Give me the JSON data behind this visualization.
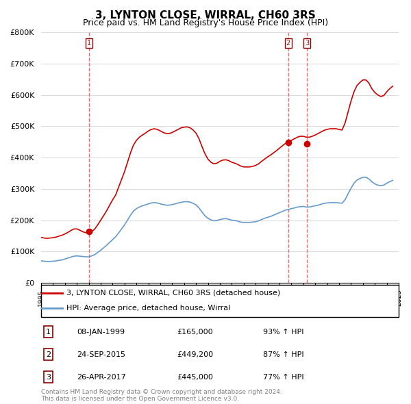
{
  "title": "3, LYNTON CLOSE, WIRRAL, CH60 3RS",
  "subtitle": "Price paid vs. HM Land Registry's House Price Index (HPI)",
  "ylabel": "",
  "ylim": [
    0,
    800000
  ],
  "yticks": [
    0,
    100000,
    200000,
    300000,
    400000,
    500000,
    600000,
    700000,
    800000
  ],
  "ytick_labels": [
    "£0",
    "£100K",
    "£200K",
    "£300K",
    "£400K",
    "£500K",
    "£600K",
    "£700K",
    "£800K"
  ],
  "sales": [
    {
      "label": "1",
      "year": 1999.03,
      "price": 165000,
      "date_str": "08-JAN-1999",
      "price_str": "£165,000",
      "hpi_str": "93% ↑ HPI"
    },
    {
      "label": "2",
      "year": 2015.73,
      "price": 449200,
      "date_str": "24-SEP-2015",
      "price_str": "£449,200",
      "hpi_str": "87% ↑ HPI"
    },
    {
      "label": "3",
      "year": 2017.32,
      "price": 445000,
      "date_str": "26-APR-2017",
      "price_str": "£445,000",
      "hpi_str": "77% ↑ HPI"
    }
  ],
  "red_line_color": "#cc0000",
  "blue_line_color": "#6699cc",
  "sale_marker_color": "#cc0000",
  "vline_color": "#ff6666",
  "grid_color": "#dddddd",
  "background_color": "#ffffff",
  "legend_label_red": "3, LYNTON CLOSE, WIRRAL, CH60 3RS (detached house)",
  "legend_label_blue": "HPI: Average price, detached house, Wirral",
  "footer": "Contains HM Land Registry data © Crown copyright and database right 2024.\nThis data is licensed under the Open Government Licence v3.0.",
  "title_fontsize": 11,
  "subtitle_fontsize": 9,
  "hpi_red_data": {
    "years": [
      1995.0,
      1995.25,
      1995.5,
      1995.75,
      1996.0,
      1996.25,
      1996.5,
      1996.75,
      1997.0,
      1997.25,
      1997.5,
      1997.75,
      1998.0,
      1998.25,
      1998.5,
      1998.75,
      1999.0,
      1999.25,
      1999.5,
      1999.75,
      2000.0,
      2000.25,
      2000.5,
      2000.75,
      2001.0,
      2001.25,
      2001.5,
      2001.75,
      2002.0,
      2002.25,
      2002.5,
      2002.75,
      2003.0,
      2003.25,
      2003.5,
      2003.75,
      2004.0,
      2004.25,
      2004.5,
      2004.75,
      2005.0,
      2005.25,
      2005.5,
      2005.75,
      2006.0,
      2006.25,
      2006.5,
      2006.75,
      2007.0,
      2007.25,
      2007.5,
      2007.75,
      2008.0,
      2008.25,
      2008.5,
      2008.75,
      2009.0,
      2009.25,
      2009.5,
      2009.75,
      2010.0,
      2010.25,
      2010.5,
      2010.75,
      2011.0,
      2011.25,
      2011.5,
      2011.75,
      2012.0,
      2012.25,
      2012.5,
      2012.75,
      2013.0,
      2013.25,
      2013.5,
      2013.75,
      2014.0,
      2014.25,
      2014.5,
      2014.75,
      2015.0,
      2015.25,
      2015.5,
      2015.75,
      2016.0,
      2016.25,
      2016.5,
      2016.75,
      2017.0,
      2017.25,
      2017.5,
      2017.75,
      2018.0,
      2018.25,
      2018.5,
      2018.75,
      2019.0,
      2019.25,
      2019.5,
      2019.75,
      2020.0,
      2020.25,
      2020.5,
      2020.75,
      2021.0,
      2021.25,
      2021.5,
      2021.75,
      2022.0,
      2022.25,
      2022.5,
      2022.75,
      2023.0,
      2023.25,
      2023.5,
      2023.75,
      2024.0,
      2024.25,
      2024.5
    ],
    "values": [
      145000,
      143000,
      142000,
      143000,
      144000,
      146000,
      149000,
      152000,
      156000,
      161000,
      167000,
      172000,
      172000,
      168000,
      163000,
      160000,
      158000,
      163000,
      172000,
      185000,
      200000,
      215000,
      230000,
      248000,
      265000,
      280000,
      305000,
      330000,
      355000,
      385000,
      415000,
      440000,
      455000,
      465000,
      472000,
      478000,
      485000,
      490000,
      492000,
      490000,
      485000,
      480000,
      477000,
      477000,
      480000,
      485000,
      490000,
      495000,
      497000,
      498000,
      495000,
      488000,
      478000,
      460000,
      435000,
      412000,
      395000,
      385000,
      380000,
      382000,
      388000,
      392000,
      393000,
      390000,
      385000,
      382000,
      378000,
      373000,
      370000,
      370000,
      370000,
      372000,
      375000,
      380000,
      388000,
      395000,
      402000,
      408000,
      415000,
      422000,
      430000,
      438000,
      445000,
      450000,
      455000,
      460000,
      465000,
      468000,
      468000,
      465000,
      465000,
      468000,
      472000,
      477000,
      482000,
      487000,
      490000,
      492000,
      492000,
      492000,
      490000,
      488000,
      510000,
      545000,
      580000,
      610000,
      630000,
      640000,
      648000,
      648000,
      638000,
      620000,
      608000,
      600000,
      595000,
      598000,
      610000,
      620000,
      628000
    ]
  },
  "hpi_blue_data": {
    "years": [
      1995.0,
      1995.25,
      1995.5,
      1995.75,
      1996.0,
      1996.25,
      1996.5,
      1996.75,
      1997.0,
      1997.25,
      1997.5,
      1997.75,
      1998.0,
      1998.25,
      1998.5,
      1998.75,
      1999.0,
      1999.25,
      1999.5,
      1999.75,
      2000.0,
      2000.25,
      2000.5,
      2000.75,
      2001.0,
      2001.25,
      2001.5,
      2001.75,
      2002.0,
      2002.25,
      2002.5,
      2002.75,
      2003.0,
      2003.25,
      2003.5,
      2003.75,
      2004.0,
      2004.25,
      2004.5,
      2004.75,
      2005.0,
      2005.25,
      2005.5,
      2005.75,
      2006.0,
      2006.25,
      2006.5,
      2006.75,
      2007.0,
      2007.25,
      2007.5,
      2007.75,
      2008.0,
      2008.25,
      2008.5,
      2008.75,
      2009.0,
      2009.25,
      2009.5,
      2009.75,
      2010.0,
      2010.25,
      2010.5,
      2010.75,
      2011.0,
      2011.25,
      2011.5,
      2011.75,
      2012.0,
      2012.25,
      2012.5,
      2012.75,
      2013.0,
      2013.25,
      2013.5,
      2013.75,
      2014.0,
      2014.25,
      2014.5,
      2014.75,
      2015.0,
      2015.25,
      2015.5,
      2015.75,
      2016.0,
      2016.25,
      2016.5,
      2016.75,
      2017.0,
      2017.25,
      2017.5,
      2017.75,
      2018.0,
      2018.25,
      2018.5,
      2018.75,
      2019.0,
      2019.25,
      2019.5,
      2019.75,
      2020.0,
      2020.25,
      2020.5,
      2020.75,
      2021.0,
      2021.25,
      2021.5,
      2021.75,
      2022.0,
      2022.25,
      2022.5,
      2022.75,
      2023.0,
      2023.25,
      2023.5,
      2023.75,
      2024.0,
      2024.25,
      2024.5
    ],
    "values": [
      70000,
      69000,
      68000,
      68000,
      69000,
      70000,
      72000,
      73000,
      76000,
      79000,
      82000,
      85000,
      86000,
      85000,
      84000,
      83000,
      83000,
      86000,
      90000,
      97000,
      104000,
      112000,
      120000,
      129000,
      138000,
      147000,
      159000,
      172000,
      185000,
      200000,
      216000,
      229000,
      237000,
      242000,
      246000,
      249000,
      252000,
      255000,
      256000,
      255000,
      252000,
      250000,
      248000,
      248000,
      250000,
      252000,
      255000,
      257000,
      259000,
      259000,
      258000,
      254000,
      249000,
      239000,
      226000,
      214000,
      206000,
      201000,
      198000,
      199000,
      202000,
      204000,
      205000,
      203000,
      200000,
      199000,
      197000,
      194000,
      193000,
      193000,
      193000,
      194000,
      195000,
      198000,
      202000,
      206000,
      209000,
      212000,
      216000,
      220000,
      224000,
      228000,
      232000,
      234000,
      237000,
      239000,
      242000,
      243000,
      244000,
      242000,
      242000,
      244000,
      246000,
      248000,
      251000,
      254000,
      255000,
      256000,
      256000,
      256000,
      255000,
      254000,
      265000,
      284000,
      302000,
      318000,
      328000,
      333000,
      337000,
      337000,
      332000,
      323000,
      316000,
      312000,
      310000,
      312000,
      318000,
      323000,
      327000
    ]
  }
}
